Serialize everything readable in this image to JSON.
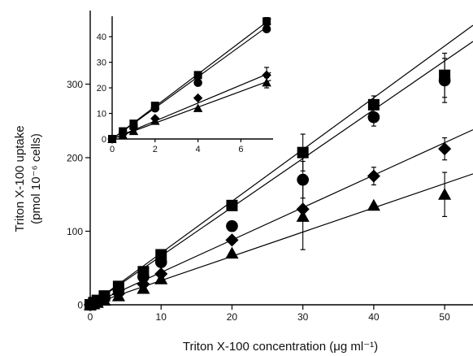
{
  "chart_data": [
    {
      "type": "scatter",
      "panel": "main",
      "xlabel": "Triton X-100 concentration (μg ml⁻¹)",
      "ylabel_line1": "Triton X-100 uptake",
      "ylabel_line2": "(pmol 10⁻⁶ cells)",
      "xlim": [
        0,
        54
      ],
      "ylim": [
        0,
        400
      ],
      "xticks": [
        0,
        10,
        20,
        30,
        40,
        50
      ],
      "yticks": [
        0,
        100,
        200,
        300
      ],
      "series": [
        {
          "marker": "square",
          "x": [
            0,
            0.5,
            1,
            2,
            4,
            7.5,
            10,
            20,
            30,
            40,
            50
          ],
          "y": [
            0,
            3,
            6,
            12,
            25,
            45,
            68,
            135,
            207,
            272,
            312
          ],
          "err": [
            0,
            0,
            0,
            0,
            0,
            0,
            0,
            0,
            25,
            12,
            30
          ],
          "fit": [
            [
              0,
              0
            ],
            [
              54,
              380
            ]
          ]
        },
        {
          "marker": "circle",
          "x": [
            0,
            0.5,
            1,
            2,
            4,
            7.5,
            10,
            20,
            30,
            40,
            50
          ],
          "y": [
            0,
            2,
            5,
            10,
            20,
            38,
            58,
            107,
            170,
            255,
            305
          ],
          "err": [
            0,
            0,
            0,
            0,
            0,
            0,
            0,
            0,
            25,
            12,
            30
          ],
          "fit": [
            [
              0,
              0
            ],
            [
              54,
              358
            ]
          ]
        },
        {
          "marker": "diamond",
          "x": [
            0,
            0.5,
            1,
            2,
            4,
            7.5,
            10,
            20,
            30,
            40,
            50
          ],
          "y": [
            0,
            2,
            4,
            8,
            15,
            28,
            42,
            88,
            130,
            175,
            212
          ],
          "err": [
            0,
            0,
            0,
            0,
            0,
            0,
            0,
            0,
            0,
            12,
            15
          ],
          "fit": [
            [
              0,
              0
            ],
            [
              54,
              238
            ]
          ]
        },
        {
          "marker": "triangle",
          "x": [
            0,
            0.5,
            1,
            2,
            4,
            7.5,
            10,
            20,
            30,
            40,
            50
          ],
          "y": [
            0,
            1,
            3,
            6,
            12,
            22,
            35,
            70,
            120,
            135,
            150
          ],
          "err": [
            0,
            0,
            0,
            0,
            0,
            0,
            0,
            0,
            45,
            0,
            30
          ],
          "fit": [
            [
              0,
              0
            ],
            [
              54,
              178
            ]
          ]
        }
      ]
    },
    {
      "type": "scatter",
      "panel": "inset",
      "xlim": [
        0,
        7.5
      ],
      "ylim": [
        0,
        48
      ],
      "xticks": [
        0,
        2,
        4,
        6
      ],
      "yticks": [
        0,
        10,
        20,
        30,
        40
      ],
      "series": [
        {
          "marker": "square",
          "x": [
            0,
            0.5,
            1,
            2,
            4,
            7.2
          ],
          "y": [
            0,
            3,
            6,
            13,
            25,
            46
          ],
          "err": [
            0,
            0,
            0,
            0,
            0,
            1.5
          ],
          "fit": [
            [
              0,
              0
            ],
            [
              7.4,
              47
            ]
          ]
        },
        {
          "marker": "circle",
          "x": [
            0,
            0.5,
            1,
            2,
            4,
            7.2
          ],
          "y": [
            0,
            2.5,
            5,
            12,
            22,
            43
          ],
          "err": [
            0,
            0,
            0,
            0,
            0,
            0
          ],
          "fit": [
            [
              0,
              0
            ],
            [
              7.4,
              45
            ]
          ]
        },
        {
          "marker": "diamond",
          "x": [
            0,
            0.5,
            1,
            2,
            4,
            7.2
          ],
          "y": [
            0,
            2,
            4,
            8,
            16,
            25
          ],
          "err": [
            0,
            0,
            0,
            0,
            0,
            3
          ],
          "fit": [
            [
              0,
              0
            ],
            [
              7.4,
              26
            ]
          ]
        },
        {
          "marker": "triangle",
          "x": [
            0,
            0.5,
            1,
            2,
            4,
            7.2
          ],
          "y": [
            0,
            1.5,
            3,
            7,
            12,
            22
          ],
          "err": [
            0,
            0,
            0,
            0,
            0,
            2
          ],
          "fit": [
            [
              0,
              0
            ],
            [
              7.4,
              23
            ]
          ]
        }
      ]
    }
  ]
}
